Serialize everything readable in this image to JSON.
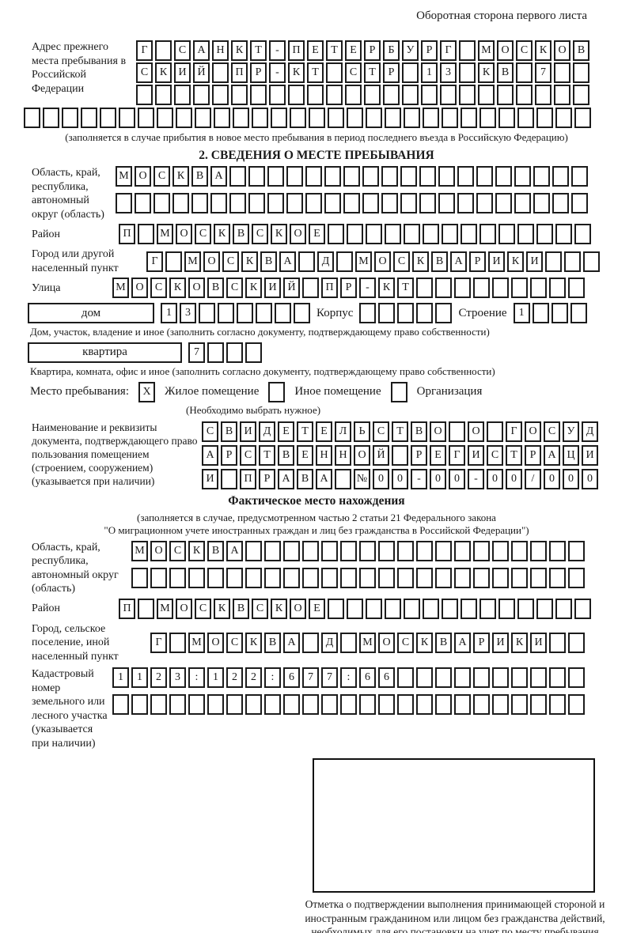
{
  "page": {
    "top_right_note": "Оборотная сторона первого листа"
  },
  "prev_address": {
    "label": "Адрес прежнего места пребывания в Российской Федерации",
    "rows": [
      {
        "total": 24,
        "cells": [
          "Г",
          "",
          "С",
          "А",
          "Н",
          "К",
          "Т",
          "-",
          "П",
          "Е",
          "Т",
          "Е",
          "Р",
          "Б",
          "У",
          "Р",
          "Г",
          "",
          "М",
          "О",
          "С",
          "К",
          "О",
          "В"
        ]
      },
      {
        "total": 24,
        "cells": [
          "С",
          "К",
          "И",
          "Й",
          "",
          "П",
          "Р",
          "-",
          "К",
          "Т",
          "",
          "С",
          "Т",
          "Р",
          "",
          "1",
          "3",
          "",
          "К",
          "В",
          "",
          "7",
          "",
          ""
        ]
      },
      {
        "total": 24,
        "cells": []
      },
      {
        "total": 30,
        "cells": []
      }
    ],
    "note": "(заполняется в случае прибытия в новое место пребывания в период последнего въезда в Российскую Федерацию)"
  },
  "section2": {
    "title": "2. СВЕДЕНИЯ О МЕСТЕ ПРЕБЫВАНИЯ",
    "region": {
      "label": "Область, край, республика, автономный округ (область)",
      "rows": [
        {
          "total": 25,
          "cells": [
            "М",
            "О",
            "С",
            "К",
            "В",
            "А"
          ]
        },
        {
          "total": 25,
          "cells": []
        }
      ]
    },
    "district": {
      "label": "Район",
      "row": {
        "total": 25,
        "cells": [
          "П",
          "",
          "М",
          "О",
          "С",
          "К",
          "В",
          "С",
          "К",
          "О",
          "Е"
        ]
      }
    },
    "city": {
      "label": "Город или другой населенный пункт",
      "row": {
        "total": 24,
        "cells": [
          "Г",
          "",
          "М",
          "О",
          "С",
          "К",
          "В",
          "А",
          "",
          "Д",
          "",
          "М",
          "О",
          "С",
          "К",
          "В",
          "А",
          "Р",
          "И",
          "К",
          "И"
        ]
      }
    },
    "street": {
      "label": "Улица",
      "row": {
        "total": 25,
        "cells": [
          "М",
          "О",
          "С",
          "К",
          "О",
          "В",
          "С",
          "К",
          "И",
          "Й",
          "",
          "П",
          "Р",
          "-",
          "К",
          "Т"
        ]
      }
    },
    "house": {
      "box_label": "дом",
      "row": {
        "total": 8,
        "cells": [
          "1",
          "3"
        ]
      },
      "korpus_label": "Корпус",
      "korpus_row": {
        "total": 5,
        "cells": []
      },
      "stroenie_label": "Строение",
      "stroenie_row": {
        "total": 4,
        "cells": [
          "1"
        ]
      },
      "note": "Дом, участок, владение и иное (заполнить согласно документу, подтверждающему право собственности)"
    },
    "apartment": {
      "box_label": "квартира",
      "row": {
        "total": 4,
        "cells": [
          "7"
        ]
      },
      "note": "Квартира, комната, офис и иное (заполнить согласно документу, подтверждающему право собственности)"
    },
    "stay_type": {
      "label": "Место пребывания:",
      "options": [
        {
          "label": "Жилое помещение",
          "checked": "X"
        },
        {
          "label": "Иное помещение",
          "checked": ""
        },
        {
          "label": "Организация",
          "checked": ""
        }
      ],
      "note": "(Необходимо выбрать нужное)"
    },
    "document": {
      "label": "Наименование и реквизиты документа, подтверждающего право пользования помещением (строением, сооружением) (указывается при наличии)",
      "rows": [
        {
          "total": 21,
          "cells": [
            "С",
            "В",
            "И",
            "Д",
            "Е",
            "Т",
            "Е",
            "Л",
            "Ь",
            "С",
            "Т",
            "В",
            "О",
            "",
            "О",
            "",
            "Г",
            "О",
            "С",
            "У",
            "Д"
          ]
        },
        {
          "total": 21,
          "cells": [
            "А",
            "Р",
            "С",
            "Т",
            "В",
            "Е",
            "Н",
            "Н",
            "О",
            "Й",
            "",
            "Р",
            "Е",
            "Г",
            "И",
            "С",
            "Т",
            "Р",
            "А",
            "Ц",
            "И"
          ]
        },
        {
          "total": 21,
          "cells": [
            "И",
            "",
            "П",
            "Р",
            "А",
            "В",
            "А",
            "",
            "№",
            "0",
            "0",
            "-",
            "0",
            "0",
            "-",
            "0",
            "0",
            "/",
            "0",
            "0",
            "0"
          ]
        }
      ]
    }
  },
  "actual_location": {
    "title": "Фактическое место нахождения",
    "subtitle_line1": "(заполняется в случае, предусмотренном частью 2 статьи 21 Федерального закона",
    "subtitle_line2": "\"О миграционном учете иностранных граждан и лиц без гражданства в Российской Федерации\")",
    "region": {
      "label": "Область, край, республика, автономный округ (область)",
      "rows": [
        {
          "total": 24,
          "cells": [
            "М",
            "О",
            "С",
            "К",
            "В",
            "А"
          ]
        },
        {
          "total": 24,
          "cells": []
        }
      ]
    },
    "district": {
      "label": "Район",
      "row": {
        "total": 25,
        "cells": [
          "П",
          "",
          "М",
          "О",
          "С",
          "К",
          "В",
          "С",
          "К",
          "О",
          "Е"
        ]
      }
    },
    "city": {
      "label": "Город, сельское поселение, иной населенный пункт",
      "row": {
        "total": 23,
        "cells": [
          "Г",
          "",
          "М",
          "О",
          "С",
          "К",
          "В",
          "А",
          "",
          "Д",
          "",
          "М",
          "О",
          "С",
          "К",
          "В",
          "А",
          "Р",
          "И",
          "К",
          "И"
        ]
      }
    },
    "cadastre": {
      "label": "Кадастровый номер земельного или лесного участка (указывается при наличии)",
      "rows": [
        {
          "total": 25,
          "cells": [
            "1",
            "1",
            "2",
            "3",
            ":",
            "1",
            "2",
            "2",
            ":",
            "6",
            "7",
            "7",
            ":",
            "6",
            "6"
          ]
        },
        {
          "total": 25,
          "cells": []
        }
      ]
    }
  },
  "stamp": {
    "caption": "Отметка о подтверждении выполнения принимающей стороной и иностранным гражданином или лицом без гражданства действий, необходимых для его постановки на учет по месту пребывания"
  }
}
